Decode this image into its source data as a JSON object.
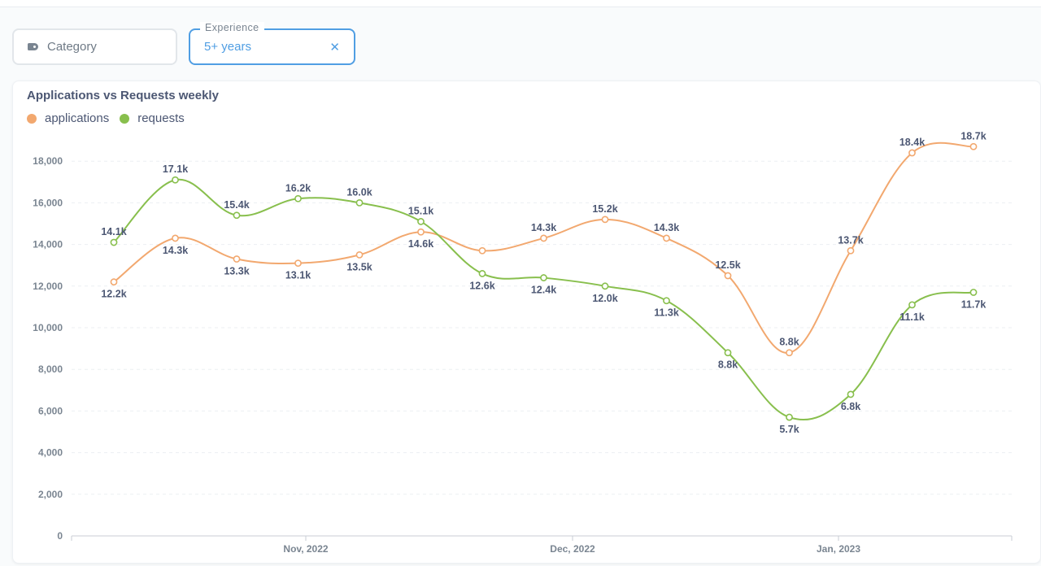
{
  "filters": {
    "category": {
      "label": "Category",
      "icon": "tag-icon"
    },
    "experience": {
      "caption": "Experience",
      "value": "5+ years",
      "clear_icon": "close-icon",
      "clear_glyph": "✕"
    }
  },
  "chart_data": {
    "type": "line",
    "title": "Applications vs Requests weekly",
    "xlabel": "",
    "ylabel": "",
    "ylim": [
      0,
      18000
    ],
    "yticks": [
      "0",
      "2,000",
      "4,000",
      "6,000",
      "8,000",
      "10,000",
      "12,000",
      "14,000",
      "16,000",
      "18,000"
    ],
    "x_tick_labels": [
      "Nov, 2022",
      "Dec, 2022",
      "Jan, 2023"
    ],
    "grid": true,
    "legend_position": "top-left",
    "series": [
      {
        "name": "applications",
        "color": "#f2a86f",
        "values": [
          12200,
          14300,
          13300,
          13100,
          13500,
          14600,
          13700,
          14300,
          15200,
          14300,
          12500,
          8800,
          13700,
          18400,
          18700
        ],
        "labels": [
          "12.2k",
          "14.3k",
          "13.3k",
          "13.1k",
          "13.5k",
          "14.6k",
          "",
          "14.3k",
          "15.2k",
          "14.3k",
          "12.5k",
          "8.8k",
          "13.7k",
          "18.4k",
          "18.7k"
        ]
      },
      {
        "name": "requests",
        "color": "#88bf4d",
        "values": [
          14100,
          17100,
          15400,
          16200,
          16000,
          15100,
          12600,
          12400,
          12000,
          11300,
          8800,
          5700,
          6800,
          11100,
          11700
        ],
        "labels": [
          "14.1k",
          "17.1k",
          "15.4k",
          "16.2k",
          "16.0k",
          "15.1k",
          "12.6k",
          "12.4k",
          "12.0k",
          "11.3k",
          "8.8k",
          "5.7k",
          "6.8k",
          "11.1k",
          "11.7k"
        ]
      }
    ]
  }
}
